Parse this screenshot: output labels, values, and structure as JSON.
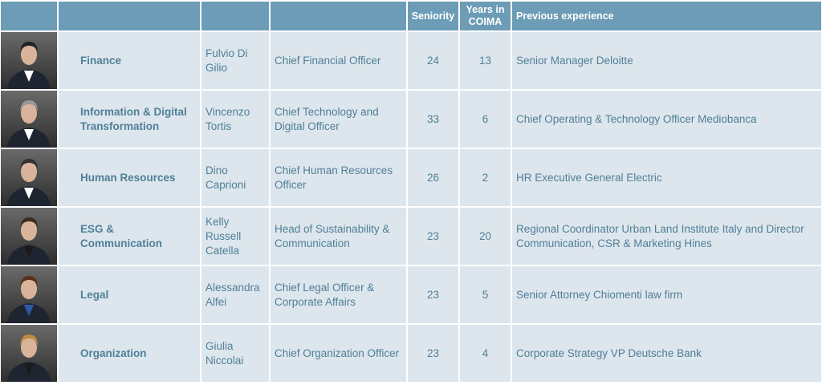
{
  "table": {
    "header": [
      "Seniority",
      "Years in COIMA",
      "Previous experience"
    ],
    "rows": [
      {
        "department": "Finance",
        "name": "Fulvio Di Gilio",
        "role": "Chief Financial Officer",
        "seniority": 24,
        "years": 13,
        "previous": "Senior Manager Deloitte"
      },
      {
        "department": "Information & Digital Transformation",
        "name": "Vincenzo Tortis",
        "role": "Chief Technology and Digital Officer",
        "seniority": 33,
        "years": 6,
        "previous": "Chief Operating & Technology Officer Mediobanca"
      },
      {
        "department": "Human Resources",
        "name": "Dino Caprioni",
        "role": "Chief Human Resources Officer",
        "seniority": 26,
        "years": 2,
        "previous": "HR Executive General Electric"
      },
      {
        "department": "ESG & Communication",
        "name": "Kelly Russell Catella",
        "role": "Head of Sustainability & Communication",
        "seniority": 23,
        "years": 20,
        "previous": "Regional Coordinator Urban Land Institute Italy and Director Communication, CSR & Marketing Hines"
      },
      {
        "department": "Legal",
        "name": "Alessandra Alfei",
        "role": "Chief Legal Officer & Corporate Affairs",
        "seniority": 23,
        "years": 5,
        "previous": "Senior Attorney Chiomenti law firm"
      },
      {
        "department": "Organization",
        "name": "Giulia Niccolai",
        "role": "Chief Organization Officer",
        "seniority": 23,
        "years": 4,
        "previous": "Corporate Strategy VP Deutsche Bank"
      }
    ]
  }
}
